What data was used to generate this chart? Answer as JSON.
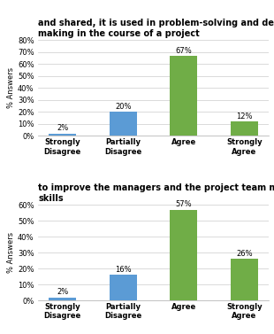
{
  "chart1": {
    "title": "and shared, it is used in problem-solving and decision-\nmaking in the course of a project",
    "categories": [
      "Strongly\nDisagree",
      "Partially\nDisagree",
      "Agree",
      "Strongly\nAgree"
    ],
    "values": [
      2,
      20,
      67,
      12
    ],
    "colors": [
      "#5b9bd5",
      "#5b9bd5",
      "#70ad47",
      "#70ad47"
    ],
    "ylim": [
      0,
      80
    ],
    "yticks": [
      0,
      10,
      20,
      30,
      40,
      50,
      60,
      70,
      80
    ],
    "yticklabels": [
      "0%",
      "10%",
      "20%",
      "30%",
      "40%",
      "50%",
      "60%",
      "70%",
      "80%"
    ]
  },
  "chart2": {
    "title": "to improve the managers and the project team member's\nskills",
    "categories": [
      "Strongly\nDisagree",
      "Partially\nDisagree",
      "Agree",
      "Strongly\nAgree"
    ],
    "values": [
      2,
      16,
      57,
      26
    ],
    "colors": [
      "#5b9bd5",
      "#5b9bd5",
      "#70ad47",
      "#70ad47"
    ],
    "ylim": [
      0,
      60
    ],
    "yticks": [
      0,
      10,
      20,
      30,
      40,
      50,
      60
    ],
    "yticklabels": [
      "0%",
      "10%",
      "20%",
      "30%",
      "40%",
      "50%",
      "60%"
    ]
  },
  "ylabel": "% Answers",
  "bar_width": 0.45,
  "title_fontsize": 7.0,
  "label_fontsize": 6.0,
  "tick_fontsize": 6.0,
  "value_fontsize": 6.0,
  "ylabel_fontsize": 6.0,
  "background_color": "#ffffff",
  "grid_color": "#cccccc"
}
